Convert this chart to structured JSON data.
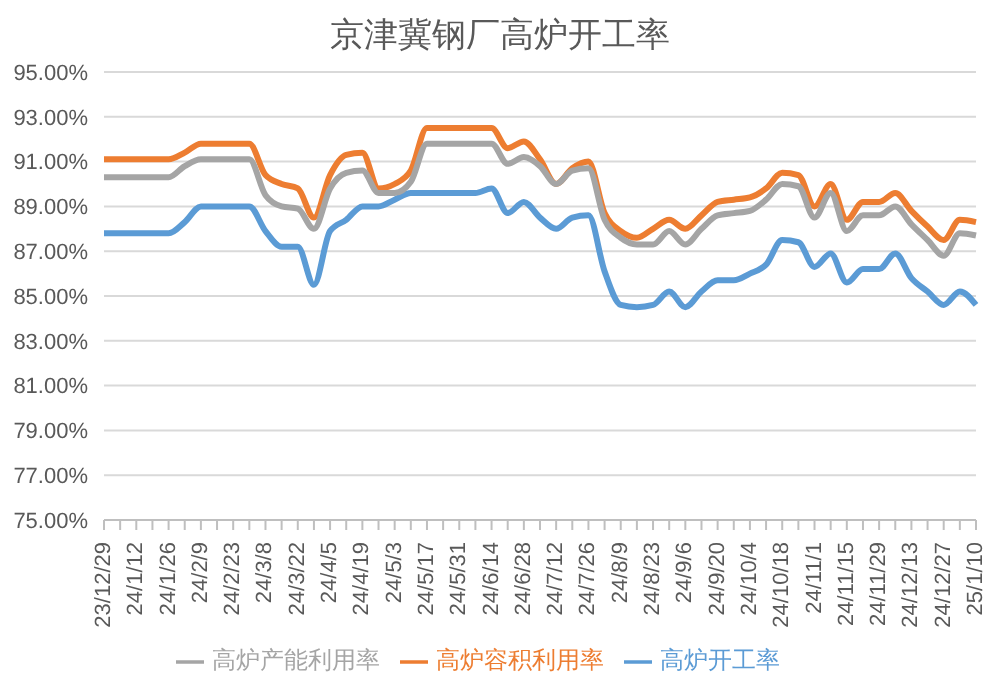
{
  "chart_data": {
    "type": "line",
    "title": "京津冀钢厂高炉开工率",
    "categories": [
      "23/12/29",
      null,
      "24/1/12",
      null,
      "24/1/26",
      null,
      "24/2/9",
      null,
      "24/2/23",
      null,
      "24/3/8",
      null,
      "24/3/22",
      null,
      "24/4/5",
      null,
      "24/4/19",
      null,
      "24/5/3",
      null,
      "24/5/17",
      null,
      "24/5/31",
      null,
      "24/6/14",
      null,
      "24/6/28",
      null,
      "24/7/12",
      null,
      "24/7/26",
      null,
      "24/8/9",
      null,
      "24/8/23",
      null,
      "24/9/6",
      null,
      "24/9/20",
      null,
      "24/10/4",
      null,
      "24/10/18",
      null,
      "24/11/1",
      null,
      "24/11/15",
      null,
      "24/11/29",
      null,
      "24/12/13",
      null,
      "24/12/27",
      null,
      "25/1/10"
    ],
    "series": [
      {
        "name": "高炉开工率",
        "color": "#5b9bd5",
        "values": [
          87.8,
          87.8,
          87.8,
          87.8,
          87.8,
          88.3,
          89.0,
          89.0,
          89.0,
          89.0,
          87.9,
          87.2,
          87.2,
          85.5,
          87.9,
          88.4,
          89.0,
          89.0,
          89.3,
          89.6,
          89.6,
          89.6,
          89.6,
          89.6,
          89.8,
          88.7,
          89.2,
          88.5,
          88.0,
          88.5,
          88.6,
          86.1,
          84.6,
          84.5,
          84.6,
          85.2,
          84.5,
          85.2,
          85.7,
          85.7,
          86.0,
          86.4,
          87.5,
          87.4,
          86.3,
          86.9,
          85.6,
          86.2,
          86.2,
          86.9,
          85.8,
          85.2,
          84.6,
          85.2,
          84.6
        ]
      },
      {
        "name": "高炉容积利用率",
        "color": "#ed7d31",
        "values": [
          91.1,
          91.1,
          91.1,
          91.1,
          91.1,
          91.4,
          91.8,
          91.8,
          91.8,
          91.8,
          90.4,
          90.0,
          89.8,
          88.5,
          90.4,
          91.3,
          91.4,
          89.8,
          90.0,
          90.6,
          92.5,
          92.5,
          92.5,
          92.5,
          92.5,
          91.6,
          91.9,
          91.1,
          90.0,
          90.7,
          91.0,
          88.7,
          87.9,
          87.6,
          88.0,
          88.4,
          88.0,
          88.6,
          89.2,
          89.3,
          89.4,
          89.8,
          90.5,
          90.4,
          89.0,
          90.0,
          88.4,
          89.2,
          89.2,
          89.6,
          88.8,
          88.1,
          87.5,
          88.4,
          88.3
        ]
      },
      {
        "name": "高炉产能利用率",
        "color": "#a5a5a5",
        "values": [
          90.3,
          90.3,
          90.3,
          90.3,
          90.3,
          90.8,
          91.1,
          91.1,
          91.1,
          91.1,
          89.5,
          89.0,
          88.9,
          88.0,
          89.8,
          90.5,
          90.6,
          89.6,
          89.6,
          90.1,
          91.8,
          91.8,
          91.8,
          91.8,
          91.8,
          90.9,
          91.2,
          90.8,
          90.0,
          90.6,
          90.7,
          88.4,
          87.6,
          87.3,
          87.3,
          87.9,
          87.3,
          88.0,
          88.6,
          88.7,
          88.8,
          89.3,
          90.0,
          89.9,
          88.5,
          89.6,
          87.9,
          88.6,
          88.6,
          89.0,
          88.2,
          87.5,
          86.8,
          87.8,
          87.7
        ]
      }
    ],
    "ylim": [
      75,
      95
    ],
    "yticks": [
      {
        "value": 75,
        "label": "75.00%"
      },
      {
        "value": 77,
        "label": "77.00%"
      },
      {
        "value": 79,
        "label": "79.00%"
      },
      {
        "value": 81,
        "label": "81.00%"
      },
      {
        "value": 83,
        "label": "83.00%"
      },
      {
        "value": 85,
        "label": "85.00%"
      },
      {
        "value": 87,
        "label": "87.00%"
      },
      {
        "value": 89,
        "label": "89.00%"
      },
      {
        "value": 91,
        "label": "91.00%"
      },
      {
        "value": 93,
        "label": "93.00%"
      },
      {
        "value": 95,
        "label": "95.00%"
      }
    ],
    "grid": "y",
    "legend": "bottom",
    "marker": "none",
    "line_style": "solid"
  }
}
